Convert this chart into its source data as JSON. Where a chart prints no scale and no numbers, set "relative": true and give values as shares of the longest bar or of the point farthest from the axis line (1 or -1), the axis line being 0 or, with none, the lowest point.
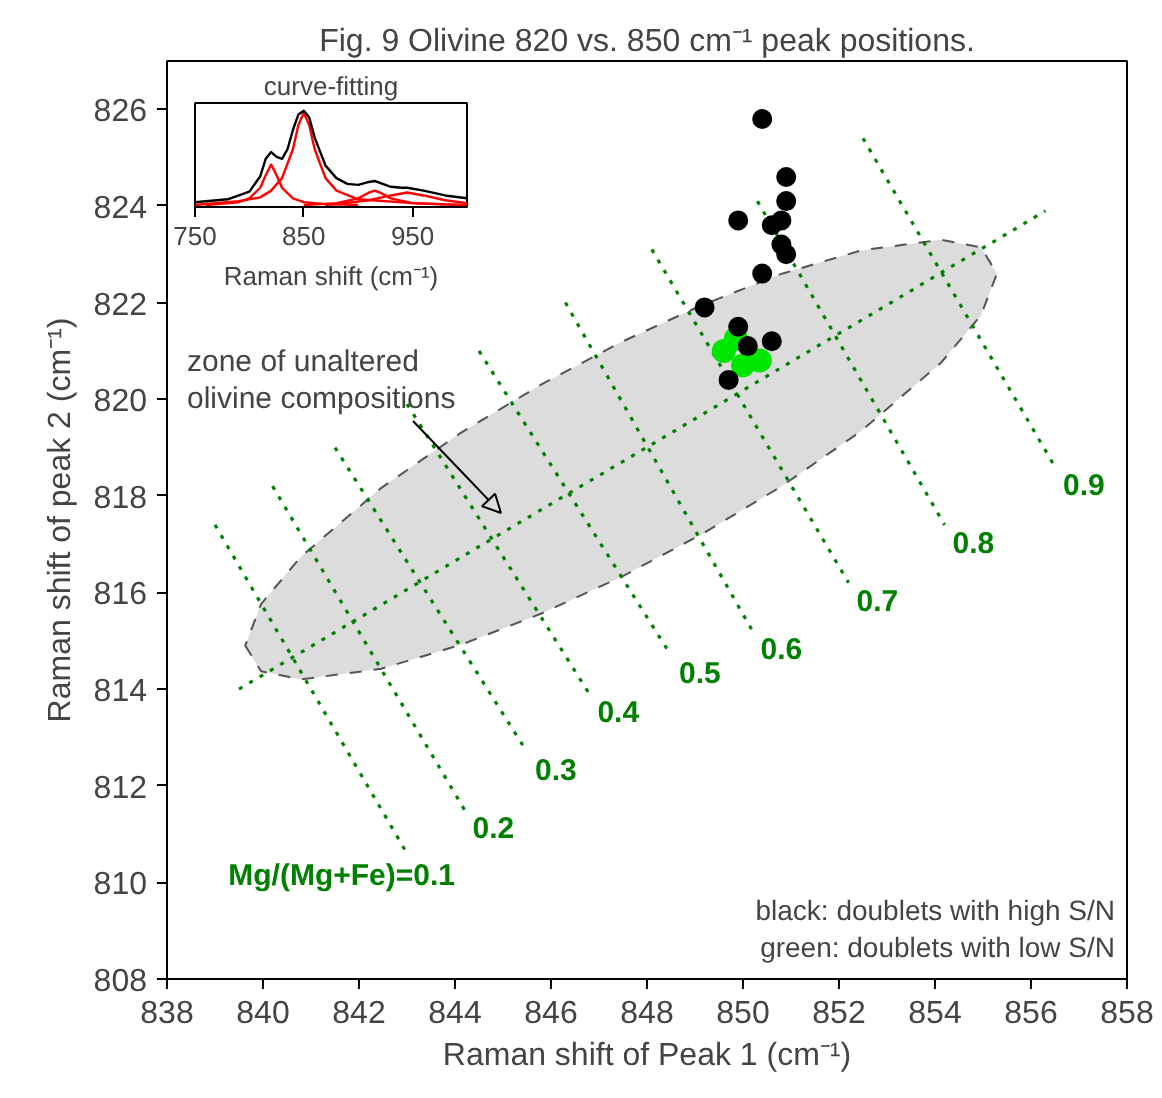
{
  "chart_data": [
    {
      "type": "scatter",
      "title": "Fig. 9 Olivine 820 vs. 850 cm⁻¹ peak positions.",
      "xlabel": "Raman shift of Peak 1 (cm⁻¹)",
      "ylabel": "Raman shift of peak 2 (cm⁻¹)",
      "xlim": [
        838,
        858
      ],
      "ylim": [
        808,
        827
      ],
      "xticks": [
        838,
        840,
        842,
        844,
        846,
        848,
        850,
        852,
        854,
        856,
        858
      ],
      "yticks": [
        808,
        810,
        812,
        814,
        816,
        818,
        820,
        822,
        824,
        826
      ],
      "annotations": [
        "zone of unaltered\nolivine compositions",
        "black: doublets with high S/N\ngreen: doublets with low S/N"
      ],
      "series": [
        {
          "type": "line",
          "color": "#008000",
          "line_style": "dotted",
          "x": [
            839.5,
            839.63,
            839.96,
            840.79,
            842.46,
            844.13,
            845.79,
            847.46,
            849.13,
            850.79,
            852.46,
            854.13,
            854.96,
            855.29,
            856.3
          ],
          "values": [
            814.0,
            814.08,
            814.27,
            814.76,
            815.74,
            816.73,
            817.71,
            818.69,
            819.67,
            820.65,
            821.63,
            822.62,
            823.11,
            823.3,
            823.9
          ],
          "lower": [
            null,
            814.9,
            814.37,
            814.2,
            814.42,
            814.92,
            815.56,
            816.32,
            817.2,
            818.19,
            819.34,
            820.76,
            821.74,
            822.6,
            null
          ],
          "upper": [
            null,
            814.9,
            815.76,
            816.74,
            818.16,
            819.31,
            820.3,
            821.18,
            821.94,
            822.59,
            823.08,
            823.3,
            823.14,
            822.6,
            null
          ]
        },
        {
          "type": "line",
          "color": "#008000",
          "line_style": "dotted",
          "name": "Mg/(Mg+Fe)=0.1",
          "x": [
            839.0,
            843.0
          ],
          "values": [
            817.4,
            810.6
          ]
        },
        {
          "type": "line",
          "color": "#008000",
          "line_style": "dotted",
          "name": "0.2",
          "x": [
            840.2,
            844.2
          ],
          "values": [
            818.2,
            811.5
          ]
        },
        {
          "type": "line",
          "color": "#008000",
          "line_style": "dotted",
          "name": "0.3",
          "x": [
            841.5,
            845.5
          ],
          "values": [
            819.0,
            812.7
          ]
        },
        {
          "type": "line",
          "color": "#008000",
          "line_style": "dotted",
          "name": "0.4",
          "x": [
            843.0,
            846.8
          ],
          "values": [
            819.9,
            813.9
          ]
        },
        {
          "type": "line",
          "color": "#008000",
          "line_style": "dotted",
          "name": "0.5",
          "x": [
            844.5,
            848.5
          ],
          "values": [
            821.0,
            814.7
          ]
        },
        {
          "type": "line",
          "color": "#008000",
          "line_style": "dotted",
          "name": "0.6",
          "x": [
            846.3,
            850.2
          ],
          "values": [
            822.0,
            815.2
          ]
        },
        {
          "type": "line",
          "color": "#008000",
          "line_style": "dotted",
          "name": "0.7",
          "x": [
            848.1,
            852.2
          ],
          "values": [
            823.1,
            816.2
          ]
        },
        {
          "type": "line",
          "color": "#008000",
          "line_style": "dotted",
          "name": "0.8",
          "x": [
            850.3,
            854.2
          ],
          "values": [
            824.1,
            817.4
          ]
        },
        {
          "type": "line",
          "color": "#008000",
          "line_style": "dotted",
          "name": "0.9",
          "x": [
            852.5,
            856.5
          ],
          "values": [
            825.4,
            818.6
          ]
        },
        {
          "marker": "circle",
          "color": "#00e600",
          "x": [
            849.6,
            850.35,
            850.0,
            849.85
          ],
          "values": [
            821.0,
            820.8,
            820.7,
            821.25
          ]
        },
        {
          "marker": "circle",
          "color": "#000000",
          "x": [
            850.4,
            850.9,
            850.9,
            849.9,
            850.6,
            850.8,
            850.8,
            850.9,
            850.4,
            849.2,
            849.9,
            850.1,
            850.6,
            849.7
          ],
          "values": [
            825.8,
            824.6,
            824.1,
            823.7,
            823.6,
            823.7,
            823.2,
            823.0,
            822.6,
            821.9,
            821.5,
            821.1,
            821.2,
            820.4
          ]
        }
      ]
    },
    {
      "type": "line",
      "relative": true,
      "title": "curve-fitting",
      "xlabel": "Raman shift (cm⁻¹)",
      "xlim": [
        750,
        1000
      ],
      "xticks": [
        750,
        850,
        950
      ],
      "tick_labels": "x",
      "series": [
        {
          "color": "#ff0000",
          "x": [
            760,
            790,
            800,
            810,
            815,
            820,
            825,
            830,
            840,
            850,
            870,
            900
          ],
          "values": [
            0.02,
            0.05,
            0.09,
            0.2,
            0.33,
            0.44,
            0.33,
            0.2,
            0.09,
            0.05,
            0.03,
            0.02
          ]
        },
        {
          "color": "#ff0000",
          "x": [
            750,
            790,
            810,
            820,
            830,
            840,
            845,
            850,
            855,
            860,
            870,
            880,
            900,
            950,
            1000
          ],
          "values": [
            0.02,
            0.06,
            0.1,
            0.17,
            0.3,
            0.6,
            0.85,
            0.98,
            0.85,
            0.6,
            0.3,
            0.17,
            0.08,
            0.04,
            0.02
          ]
        },
        {
          "color": "#ff0000",
          "x": [
            850,
            880,
            900,
            910,
            915,
            920,
            930,
            950,
            990
          ],
          "values": [
            0.02,
            0.04,
            0.09,
            0.15,
            0.17,
            0.15,
            0.09,
            0.04,
            0.02
          ]
        },
        {
          "color": "#ff0000",
          "x": [
            870,
            880,
            910,
            930,
            945,
            960,
            980,
            1000
          ],
          "values": [
            0.02,
            0.03,
            0.07,
            0.12,
            0.15,
            0.12,
            0.07,
            0.04
          ]
        },
        {
          "color": "#000000",
          "x": [
            750,
            780,
            800,
            810,
            815,
            820,
            825,
            830,
            835,
            840,
            845,
            850,
            855,
            860,
            870,
            880,
            890,
            900,
            910,
            915,
            920,
            930,
            940,
            945,
            960,
            980,
            1000
          ],
          "values": [
            0.05,
            0.08,
            0.16,
            0.32,
            0.5,
            0.57,
            0.52,
            0.5,
            0.6,
            0.8,
            0.96,
            1.0,
            0.93,
            0.72,
            0.43,
            0.3,
            0.24,
            0.23,
            0.26,
            0.27,
            0.25,
            0.21,
            0.2,
            0.2,
            0.17,
            0.12,
            0.09
          ]
        }
      ]
    }
  ]
}
